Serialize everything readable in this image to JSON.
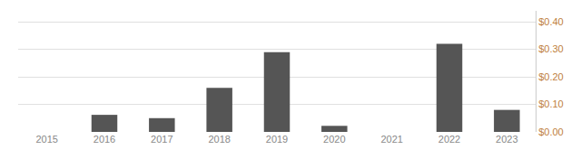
{
  "chart_data": {
    "type": "bar",
    "categories": [
      "2015",
      "2016",
      "2017",
      "2018",
      "2019",
      "2020",
      "2021",
      "2022",
      "2023"
    ],
    "values": [
      0.0,
      0.062,
      0.05,
      0.16,
      0.29,
      0.022,
      0.0,
      0.32,
      0.08
    ],
    "color": "#555555",
    "ylim": [
      0,
      0.44
    ],
    "yticks": [
      {
        "value": 0.0,
        "label": "$0.00"
      },
      {
        "value": 0.1,
        "label": "$0.10"
      },
      {
        "value": 0.2,
        "label": "$0.20"
      },
      {
        "value": 0.3,
        "label": "$0.30"
      },
      {
        "value": 0.4,
        "label": "$0.40"
      }
    ],
    "grid": true
  }
}
